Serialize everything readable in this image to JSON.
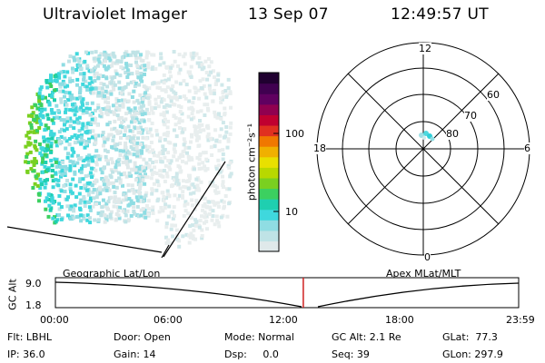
{
  "header": {
    "title": "Ultraviolet Imager",
    "date": "13 Sep 07",
    "time": "12:49:57 UT"
  },
  "colorbar": {
    "unit_label": "photon cm⁻²s⁻¹",
    "ticks": [
      "100",
      "10"
    ],
    "colors": [
      "#dfe9ea",
      "#bfe3e6",
      "#8fdde3",
      "#3fd8dd",
      "#1fcfb0",
      "#3cd060",
      "#7ad020",
      "#b8d800",
      "#e8e000",
      "#f0b000",
      "#f07800",
      "#e03020",
      "#c00030",
      "#900050",
      "#600060",
      "#400050",
      "#200030"
    ]
  },
  "polar_plot": {
    "mlt_labels": {
      "top": "12",
      "left": "18",
      "right": "6",
      "bottom": "0"
    },
    "lat_labels": [
      "60",
      "70",
      "80"
    ]
  },
  "timeline": {
    "left_title": "Geographic Lat/Lon",
    "right_title": "Apex MLat/MLT",
    "axis_name": "GC Alt",
    "y_ticks": [
      "9.0",
      "1.8"
    ],
    "x_ticks": [
      "00:00",
      "06:00",
      "12:00",
      "18:00",
      "23:59"
    ],
    "current_time_fraction": 0.535
  },
  "status": {
    "flt": "Flt: LBHL",
    "ip": "IP: 36.0",
    "door": "Door: Open",
    "gain": "Gain: 14",
    "mode": "Mode: Normal",
    "dsp": "Dsp:     0.0",
    "gcalt": "GC Alt: 2.1 Re",
    "seq": "Seq: 39",
    "glat": "GLat:  77.3",
    "glon": "GLon: 297.9"
  }
}
